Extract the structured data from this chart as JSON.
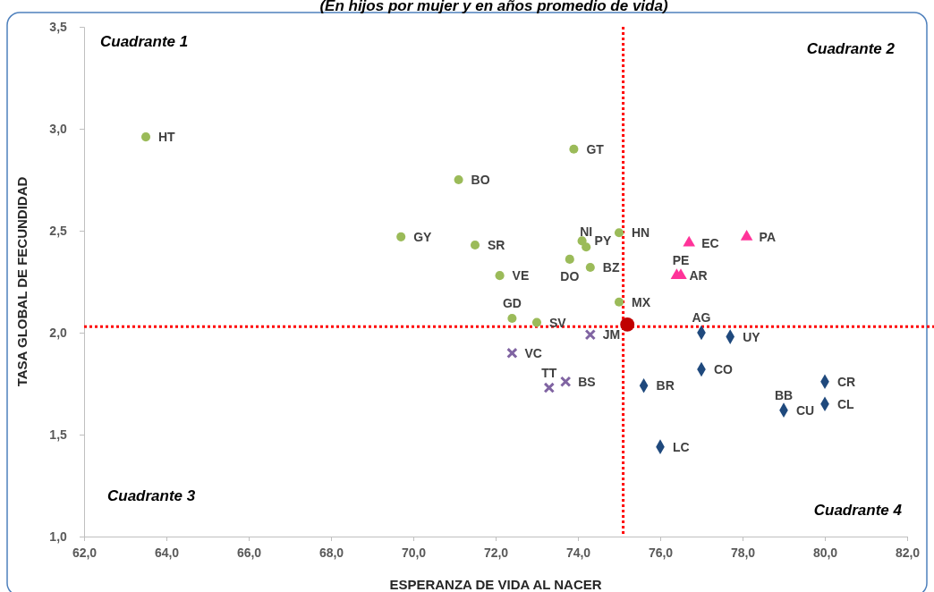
{
  "chart_data": {
    "type": "scatter",
    "subtitle": "(En hijos por mujer y en años promedio de vida)",
    "xlabel": "ESPERANZA DE VIDA AL NACER",
    "ylabel": "TASA GLOBAL DE FECUNDIDAD",
    "xlim": [
      62,
      82
    ],
    "ylim": [
      1,
      3.5
    ],
    "xticks": [
      {
        "value": 62,
        "label": "62,0"
      },
      {
        "value": 64,
        "label": "64,0"
      },
      {
        "value": 66,
        "label": "66,0"
      },
      {
        "value": 68,
        "label": "68,0"
      },
      {
        "value": 70,
        "label": "70,0"
      },
      {
        "value": 72,
        "label": "72,0"
      },
      {
        "value": 74,
        "label": "74,0"
      },
      {
        "value": 76,
        "label": "76,0"
      },
      {
        "value": 78,
        "label": "78,0"
      },
      {
        "value": 80,
        "label": "80,0"
      },
      {
        "value": 82,
        "label": "82,0"
      }
    ],
    "yticks": [
      {
        "value": 1,
        "label": "1,0"
      },
      {
        "value": 1.5,
        "label": "1,5"
      },
      {
        "value": 2,
        "label": "2,0"
      },
      {
        "value": 2.5,
        "label": "2,5"
      },
      {
        "value": 3,
        "label": "3,0"
      },
      {
        "value": 3.5,
        "label": "3,5"
      }
    ],
    "grid": false,
    "series": [
      {
        "color": "#9bbb59",
        "marker": "circle",
        "x": [
          63.5,
          71.1,
          73.9,
          69.7,
          71.5,
          75.0,
          74.1,
          74.2,
          73.8,
          74.3,
          72.1,
          75.0,
          72.4,
          73.0
        ],
        "values": [
          2.96,
          2.75,
          2.9,
          2.47,
          2.43,
          2.49,
          2.45,
          2.42,
          2.36,
          2.32,
          2.28,
          2.15,
          2.07,
          2.05
        ]
      },
      {
        "color": "#8064a2",
        "marker": "cross",
        "x": [
          74.3,
          72.4,
          73.7,
          73.3
        ],
        "values": [
          1.99,
          1.9,
          1.76,
          1.73
        ]
      },
      {
        "color": "#ff3399",
        "marker": "triangle",
        "x": [
          76.7,
          78.1,
          76.4,
          76.5
        ],
        "values": [
          2.44,
          2.47,
          2.28,
          2.28
        ]
      },
      {
        "color": "#1f497d",
        "marker": "diamond",
        "x": [
          77.0,
          77.7,
          77.0,
          75.6,
          80.0,
          80.0,
          79.0,
          76.0
        ],
        "values": [
          2.0,
          1.98,
          1.82,
          1.74,
          1.76,
          1.65,
          1.62,
          1.44
        ]
      },
      {
        "color": "#c00000",
        "marker": "circle",
        "x": [
          75.2
        ],
        "values": [
          2.04
        ]
      }
    ],
    "ref_lines": [
      {
        "axis": "x",
        "value": 75.1,
        "color": "#ff0000",
        "line_style": "dotted"
      },
      {
        "axis": "y",
        "value": 2.03,
        "color": "#ff0000",
        "line_style": "dotted"
      }
    ],
    "annotations": [
      "Cuadrante 1",
      "Cuadrante 2",
      "Cuadrante 3",
      "Cuadrante 4",
      {
        "text": "HT",
        "x": 63.5,
        "y": 2.96
      },
      {
        "text": "BO",
        "x": 71.1,
        "y": 2.75
      },
      {
        "text": "GT",
        "x": 73.9,
        "y": 2.9
      },
      {
        "text": "GY",
        "x": 69.7,
        "y": 2.47
      },
      {
        "text": "SR",
        "x": 71.5,
        "y": 2.43
      },
      {
        "text": "HN",
        "x": 75.0,
        "y": 2.49
      },
      {
        "text": "PY",
        "x": 74.1,
        "y": 2.45
      },
      {
        "text": "NI",
        "x": 74.2,
        "y": 2.42
      },
      {
        "text": "DO",
        "x": 73.8,
        "y": 2.36
      },
      {
        "text": "BZ",
        "x": 74.3,
        "y": 2.32
      },
      {
        "text": "VE",
        "x": 72.1,
        "y": 2.28
      },
      {
        "text": "MX",
        "x": 75.0,
        "y": 2.15
      },
      {
        "text": "GD",
        "x": 72.4,
        "y": 2.07
      },
      {
        "text": "SV",
        "x": 73.0,
        "y": 2.05
      },
      {
        "text": "JM",
        "x": 74.3,
        "y": 1.99
      },
      {
        "text": "VC",
        "x": 72.4,
        "y": 1.9
      },
      {
        "text": "BS",
        "x": 73.7,
        "y": 1.76
      },
      {
        "text": "TT",
        "x": 73.3,
        "y": 1.73
      },
      {
        "text": "EC",
        "x": 76.7,
        "y": 2.44
      },
      {
        "text": "PA",
        "x": 78.1,
        "y": 2.47
      },
      {
        "text": "AR",
        "x": 76.4,
        "y": 2.28
      },
      {
        "text": "PE",
        "x": 76.5,
        "y": 2.28
      },
      {
        "text": "AG",
        "x": 77.0,
        "y": 2.0
      },
      {
        "text": "UY",
        "x": 77.7,
        "y": 1.98
      },
      {
        "text": "CO",
        "x": 77.0,
        "y": 1.82
      },
      {
        "text": "BR",
        "x": 75.6,
        "y": 1.74
      },
      {
        "text": "CR",
        "x": 80.0,
        "y": 1.76
      },
      {
        "text": "CL",
        "x": 80.0,
        "y": 1.65
      },
      {
        "text": "CU",
        "x": 79.0,
        "y": 1.62
      },
      {
        "text": "BB",
        "x": 79.0,
        "y": 1.62
      },
      {
        "text": "LC",
        "x": 76.0,
        "y": 1.44
      }
    ]
  }
}
